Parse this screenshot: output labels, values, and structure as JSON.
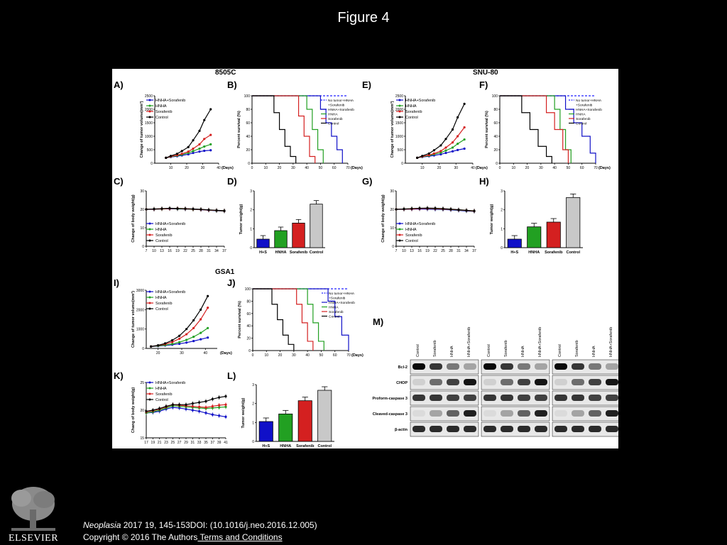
{
  "page": {
    "title": "Figure 4"
  },
  "colors": {
    "hs": "#1010c8",
    "hnha": "#22a022",
    "sor": "#d42020",
    "ctl": "#000000",
    "grey": "#c8c8c8",
    "notumor": "#2020ff"
  },
  "groups": {
    "8505c": "8505C",
    "snu80": "SNU-80",
    "gsa1": "GSA1"
  },
  "panel_labels": [
    "A)",
    "B)",
    "C)",
    "D)",
    "E)",
    "F)",
    "G)",
    "H)",
    "I)",
    "J)",
    "K)",
    "L)",
    "M)"
  ],
  "legend_main": [
    "HNHA+Sorafenib",
    "HNHA",
    "Sorafenib",
    "Control"
  ],
  "legend_survival": [
    "No tumor+HNHA",
    "+Sorafenib",
    "HNHA+Sorafenib",
    "HNHA",
    "Sorafenib",
    "Control"
  ],
  "axes": {
    "tumor_vol_ylabel": "Change of tumor volume(mm³)",
    "tumor_vol_ylabel_gsa1": "Change of tumor volume(mm³)",
    "survival_ylabel": "Percent survival (%)",
    "body_ylabel": "Change of body weight(g)",
    "body_ylabel_gsa1": "Chang of body weight(g)",
    "tumor_wt_ylabel": "Tumor weight(g)",
    "days": "(Days)",
    "bar_categories": [
      "H+S",
      "HNHA",
      "Sorafenib",
      "Control"
    ]
  },
  "chart_data": [
    {
      "type": "line",
      "panel": "A)",
      "x": [
        7,
        10,
        14,
        17,
        21,
        24,
        28,
        31,
        35
      ],
      "series": [
        {
          "name": "HNHA+Sorafenib",
          "values": [
            200,
            230,
            260,
            290,
            330,
            380,
            430,
            460,
            480
          ]
        },
        {
          "name": "HNHA",
          "values": [
            200,
            240,
            280,
            320,
            380,
            450,
            540,
            620,
            700
          ]
        },
        {
          "name": "Sorafenib",
          "values": [
            200,
            250,
            300,
            350,
            430,
            540,
            700,
            900,
            1050
          ]
        },
        {
          "name": "Control",
          "values": [
            200,
            270,
            350,
            450,
            600,
            850,
            1200,
            1600,
            2000
          ]
        }
      ],
      "ylim": [
        0,
        2500
      ],
      "xlim": [
        0,
        40
      ],
      "yticks": [
        0,
        500,
        1000,
        1500,
        2000,
        2500
      ],
      "xticks": [
        10,
        20,
        30,
        40
      ]
    },
    {
      "type": "line",
      "panel": "B)",
      "series": [
        {
          "name": "No tumor+HNHA+Sorafenib",
          "x": [
            0,
            70
          ],
          "values": [
            100,
            100
          ]
        },
        {
          "name": "HNHA+Sorafenib",
          "x": [
            0,
            46,
            50,
            54,
            58,
            62,
            66
          ],
          "values": [
            100,
            100,
            80,
            60,
            40,
            20,
            0
          ]
        },
        {
          "name": "HNHA",
          "x": [
            0,
            36,
            40,
            44,
            48,
            52
          ],
          "values": [
            100,
            100,
            80,
            50,
            20,
            0
          ]
        },
        {
          "name": "Sorafenib",
          "x": [
            0,
            30,
            34,
            38,
            42,
            46
          ],
          "values": [
            100,
            100,
            70,
            40,
            10,
            0
          ]
        },
        {
          "name": "Control",
          "x": [
            0,
            12,
            16,
            20,
            24,
            28,
            32
          ],
          "values": [
            100,
            100,
            75,
            50,
            25,
            10,
            0
          ]
        }
      ],
      "ylim": [
        0,
        100
      ],
      "xlim": [
        0,
        70
      ],
      "yticks": [
        0,
        20,
        40,
        60,
        80,
        100
      ],
      "xticks": [
        0,
        10,
        20,
        30,
        40,
        50,
        60,
        70
      ]
    },
    {
      "type": "line",
      "panel": "C)",
      "x": [
        7,
        10,
        13,
        16,
        19,
        22,
        25,
        28,
        31,
        34,
        37
      ],
      "series": [
        {
          "name": "HNHA+Sorafenib",
          "values": [
            20,
            20,
            20.2,
            20.3,
            20.2,
            20.1,
            20,
            19.8,
            19.5,
            19.2,
            19
          ]
        },
        {
          "name": "HNHA",
          "values": [
            20,
            20.1,
            20.2,
            20.4,
            20.3,
            20.2,
            20,
            19.9,
            19.6,
            19.3,
            19.1
          ]
        },
        {
          "name": "Sorafenib",
          "values": [
            20,
            20.1,
            20.3,
            20.4,
            20.5,
            20.3,
            20.1,
            19.9,
            19.6,
            19.4,
            19.2
          ]
        },
        {
          "name": "Control",
          "values": [
            20,
            20.2,
            20.4,
            20.6,
            20.5,
            20.4,
            20.2,
            20,
            19.7,
            19.5,
            19.3
          ]
        }
      ],
      "ylim": [
        0,
        30
      ],
      "yticks": [
        0,
        10,
        20,
        30
      ],
      "xticks": [
        7,
        10,
        13,
        16,
        19,
        22,
        25,
        28,
        31,
        34,
        37
      ]
    },
    {
      "type": "bar",
      "panel": "D)",
      "categories": [
        "H+S",
        "HNHA",
        "Sorafenib",
        "Control"
      ],
      "values": [
        0.45,
        0.9,
        1.3,
        2.3
      ],
      "ylim": [
        0,
        3
      ],
      "yticks": [
        0,
        1,
        2,
        3
      ]
    },
    {
      "type": "line",
      "panel": "E)",
      "x": [
        7,
        10,
        14,
        17,
        21,
        24,
        28,
        31,
        35
      ],
      "series": [
        {
          "name": "HNHA+Sorafenib",
          "values": [
            200,
            230,
            260,
            290,
            330,
            380,
            440,
            490,
            540
          ]
        },
        {
          "name": "HNHA",
          "values": [
            200,
            240,
            280,
            330,
            390,
            470,
            580,
            720,
            880
          ]
        },
        {
          "name": "Sorafenib",
          "values": [
            200,
            250,
            300,
            360,
            450,
            580,
            770,
            1000,
            1330
          ]
        },
        {
          "name": "Control",
          "values": [
            200,
            270,
            360,
            480,
            660,
            900,
            1250,
            1700,
            2200
          ]
        }
      ],
      "ylim": [
        0,
        2500
      ],
      "xlim": [
        0,
        40
      ],
      "yticks": [
        0,
        500,
        1000,
        1500,
        2000,
        2500
      ],
      "xticks": [
        10,
        20,
        30,
        40
      ]
    },
    {
      "type": "line",
      "panel": "F)",
      "series": [
        {
          "name": "No tumor+HNHA+Sorafenib",
          "x": [
            0,
            70
          ],
          "values": [
            100,
            100
          ]
        },
        {
          "name": "HNHA+Sorafenib",
          "x": [
            0,
            42,
            48,
            54,
            60,
            66,
            70
          ],
          "values": [
            100,
            100,
            80,
            60,
            40,
            15,
            0
          ]
        },
        {
          "name": "HNHA",
          "x": [
            0,
            36,
            40,
            44,
            48,
            52
          ],
          "values": [
            100,
            100,
            80,
            50,
            20,
            0
          ]
        },
        {
          "name": "Sorafenib",
          "x": [
            0,
            28,
            34,
            40,
            46,
            50
          ],
          "values": [
            100,
            100,
            75,
            50,
            20,
            0
          ]
        },
        {
          "name": "Control",
          "x": [
            0,
            10,
            16,
            22,
            28,
            34,
            38
          ],
          "values": [
            100,
            100,
            75,
            50,
            25,
            10,
            0
          ]
        }
      ],
      "ylim": [
        0,
        100
      ],
      "xlim": [
        0,
        70
      ],
      "yticks": [
        0,
        20,
        40,
        60,
        80,
        100
      ],
      "xticks": [
        0,
        10,
        20,
        30,
        40,
        50,
        60,
        70
      ]
    },
    {
      "type": "line",
      "panel": "G)",
      "x": [
        7,
        10,
        13,
        16,
        19,
        22,
        25,
        28,
        31,
        34,
        37
      ],
      "series": [
        {
          "name": "HNHA+Sorafenib",
          "values": [
            20,
            20,
            20.1,
            20.2,
            20.1,
            20,
            19.9,
            19.7,
            19.4,
            19.1,
            18.9
          ]
        },
        {
          "name": "HNHA",
          "values": [
            20,
            20.1,
            20.3,
            20.5,
            20.4,
            20.3,
            20.1,
            19.9,
            19.6,
            19.3,
            19
          ]
        },
        {
          "name": "Sorafenib",
          "values": [
            20,
            20.1,
            20.2,
            20.4,
            20.5,
            20.4,
            20.2,
            20,
            19.7,
            19.4,
            19.1
          ]
        },
        {
          "name": "Control",
          "values": [
            20,
            20.2,
            20.4,
            20.6,
            20.7,
            20.6,
            20.4,
            20.1,
            19.8,
            19.5,
            19.2
          ]
        }
      ],
      "ylim": [
        0,
        30
      ],
      "yticks": [
        0,
        10,
        20,
        30
      ],
      "xticks": [
        7,
        10,
        13,
        16,
        19,
        22,
        25,
        28,
        31,
        34,
        37
      ]
    },
    {
      "type": "bar",
      "panel": "H)",
      "categories": [
        "H+S",
        "HNHA",
        "Sorafenib",
        "Control"
      ],
      "values": [
        0.45,
        1.1,
        1.35,
        2.65
      ],
      "ylim": [
        0,
        3
      ],
      "yticks": [
        0,
        1,
        2,
        3
      ]
    },
    {
      "type": "line",
      "panel": "I)",
      "x": [
        17,
        20,
        23,
        26,
        29,
        32,
        35,
        38,
        41
      ],
      "series": [
        {
          "name": "HNHA+Sorafenib",
          "values": [
            100,
            120,
            150,
            190,
            240,
            300,
            380,
            470,
            560
          ]
        },
        {
          "name": "HNHA",
          "values": [
            100,
            130,
            170,
            230,
            320,
            440,
            600,
            800,
            1050
          ]
        },
        {
          "name": "Sorafenib",
          "values": [
            100,
            150,
            220,
            330,
            500,
            730,
            1050,
            1500,
            2100
          ]
        },
        {
          "name": "Control",
          "values": [
            100,
            160,
            260,
            420,
            650,
            1000,
            1450,
            2000,
            2700
          ]
        }
      ],
      "ylim": [
        0,
        3000
      ],
      "xlim": [
        15,
        45
      ],
      "yticks": [
        0,
        1000,
        2000,
        3000
      ],
      "xticks": [
        20,
        30,
        40
      ]
    },
    {
      "type": "line",
      "panel": "J)",
      "series": [
        {
          "name": "No tumor+HNHA+Sorafenib",
          "x": [
            0,
            70
          ],
          "values": [
            100,
            100
          ]
        },
        {
          "name": "HNHA+Sorafenib",
          "x": [
            0,
            50,
            55,
            60,
            65,
            70
          ],
          "values": [
            100,
            100,
            80,
            55,
            25,
            0
          ]
        },
        {
          "name": "HNHA",
          "x": [
            0,
            36,
            40,
            44,
            48,
            52
          ],
          "values": [
            100,
            100,
            75,
            45,
            15,
            0
          ]
        },
        {
          "name": "Sorafenib",
          "x": [
            0,
            28,
            32,
            36,
            40,
            44
          ],
          "values": [
            100,
            100,
            75,
            45,
            15,
            0
          ]
        },
        {
          "name": "Control",
          "x": [
            0,
            10,
            14,
            18,
            22,
            26,
            30
          ],
          "values": [
            100,
            100,
            75,
            50,
            25,
            10,
            0
          ]
        }
      ],
      "ylim": [
        0,
        100
      ],
      "xlim": [
        0,
        70
      ],
      "yticks": [
        0,
        20,
        40,
        60,
        80,
        100
      ],
      "xticks": [
        0,
        10,
        20,
        30,
        40,
        50,
        60,
        70
      ]
    },
    {
      "type": "line",
      "panel": "K)",
      "x": [
        17,
        19,
        21,
        23,
        25,
        27,
        29,
        31,
        33,
        35,
        37,
        39,
        41
      ],
      "series": [
        {
          "name": "HNHA+Sorafenib",
          "values": [
            19.5,
            19.6,
            19.8,
            20.2,
            20.5,
            20.4,
            20.2,
            20,
            19.8,
            19.5,
            19.2,
            19,
            18.8
          ]
        },
        {
          "name": "HNHA",
          "values": [
            19.5,
            19.7,
            20,
            20.4,
            20.8,
            20.7,
            20.6,
            20.5,
            20.4,
            20.3,
            20.4,
            20.5,
            20.6
          ]
        },
        {
          "name": "Sorafenib",
          "values": [
            19.7,
            19.9,
            20.2,
            20.6,
            21,
            20.9,
            20.8,
            20.7,
            20.6,
            20.5,
            20.7,
            20.9,
            21
          ]
        },
        {
          "name": "Control",
          "values": [
            19.8,
            20,
            20.3,
            20.7,
            21,
            21,
            21,
            21.2,
            21.4,
            21.6,
            22,
            22.3,
            22.5
          ]
        }
      ],
      "ylim": [
        15,
        25
      ],
      "yticks": [
        15,
        20,
        25
      ],
      "xticks": [
        17,
        19,
        21,
        23,
        25,
        27,
        29,
        31,
        33,
        35,
        37,
        39,
        41
      ]
    },
    {
      "type": "bar",
      "panel": "L)",
      "categories": [
        "H+S",
        "HNHA",
        "Sorafenib",
        "Control"
      ],
      "values": [
        1.05,
        1.45,
        2.15,
        2.7
      ],
      "ylim": [
        0,
        3
      ],
      "yticks": [
        0,
        1,
        2,
        3
      ]
    }
  ],
  "western": {
    "panel": "M)",
    "lanes": [
      "Control",
      "Sorafenib",
      "HNHA",
      "HNHA+Sorafenib"
    ],
    "rows": [
      "Bcl-2",
      "CHOP",
      "Proform-caspase 3",
      "Cleaved-caspase 3",
      "β-actin"
    ]
  },
  "citation": {
    "journal": "Neoplasia",
    "ref": " 2017 19, 145-153DOI: (10.1016/j.neo.2016.12.005)",
    "copyright": "Copyright © 2016 The Authors",
    "link": " Terms and Conditions"
  },
  "logo": {
    "text": "ELSEVIER"
  }
}
